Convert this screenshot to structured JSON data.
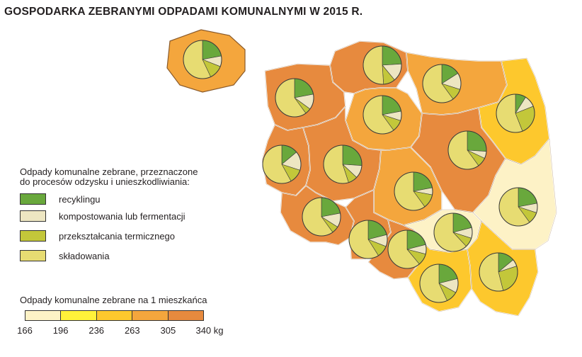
{
  "title": "GOSPODARKA ZEBRANYMI ODPADAMI KOMUNALNYMI W 2015 R.",
  "colors": {
    "recycling": "#69a83c",
    "composting": "#ede6c2",
    "thermal": "#c3c73a",
    "landfill": "#e7dc72",
    "scale": [
      "#fdf2c6",
      "#fff23a",
      "#fdc82d",
      "#f4a63d",
      "#e78a3e"
    ],
    "border": "#ffffff",
    "outline": "#8a5a2a"
  },
  "legend_waste": {
    "heading": "Odpady komunalne zebrane, przeznaczone\ndo procesów odzysku i unieszkodliwiania:",
    "items": [
      {
        "key": "recycling",
        "label": "recyklingu"
      },
      {
        "key": "composting",
        "label": "kompostowania lub fermentacji"
      },
      {
        "key": "thermal",
        "label": "przekształcania termicznego"
      },
      {
        "key": "landfill",
        "label": "składowania"
      }
    ]
  },
  "legend_scale": {
    "title": "Odpady  komunalne zebrane na 1 mieszkańca",
    "ticks": [
      "166",
      "196",
      "236",
      "263",
      "305",
      "340 kg"
    ]
  },
  "regions": [
    {
      "id": "pomorskie",
      "class": 4,
      "pie": [
        24,
        15,
        10,
        51
      ]
    },
    {
      "id": "zachodniopomorskie",
      "class": 4,
      "pie": [
        22,
        13,
        5,
        60
      ]
    },
    {
      "id": "warminsko-mazurskie",
      "class": 3,
      "pie": [
        16,
        14,
        10,
        60
      ]
    },
    {
      "id": "podlaskie",
      "class": 2,
      "pie": [
        9,
        10,
        25,
        56
      ]
    },
    {
      "id": "kujawsko-pomorskie",
      "class": 3,
      "pie": [
        22,
        8,
        10,
        60
      ]
    },
    {
      "id": "lubuskie",
      "class": 4,
      "pie": [
        14,
        16,
        12,
        58
      ]
    },
    {
      "id": "wielkopolskie",
      "class": 4,
      "pie": [
        26,
        11,
        8,
        55
      ]
    },
    {
      "id": "mazowieckie",
      "class": 4,
      "pie": [
        26,
        6,
        8,
        60
      ]
    },
    {
      "id": "lodzkie",
      "class": 3,
      "pie": [
        22,
        6,
        12,
        60
      ]
    },
    {
      "id": "lubelskie",
      "class": 0,
      "pie": [
        22,
        8,
        10,
        60
      ]
    },
    {
      "id": "dolnoslaskie",
      "class": 4,
      "pie": [
        22,
        12,
        6,
        60
      ]
    },
    {
      "id": "opolskie",
      "class": 4,
      "pie": [
        21,
        10,
        10,
        59
      ]
    },
    {
      "id": "slaskie",
      "class": 4,
      "pie": [
        21,
        8,
        10,
        61
      ]
    },
    {
      "id": "swietokrzyskie",
      "class": 0,
      "pie": [
        21,
        9,
        8,
        62
      ]
    },
    {
      "id": "malopolskie",
      "class": 2,
      "pie": [
        21,
        12,
        10,
        57
      ]
    },
    {
      "id": "podkarpackie",
      "class": 2,
      "pie": [
        14,
        6,
        26,
        54
      ]
    }
  ],
  "inset": {
    "id": "polska",
    "class": 3,
    "pie": [
      22,
      9,
      12,
      57
    ]
  }
}
